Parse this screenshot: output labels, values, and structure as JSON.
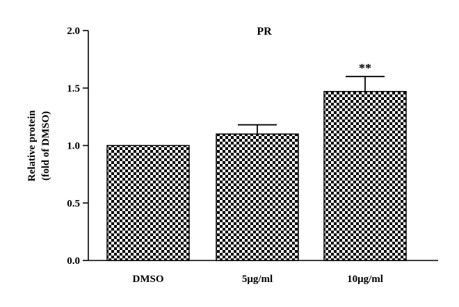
{
  "chart_data": {
    "type": "bar",
    "title": "PR",
    "ylabel_lines": [
      "Relative protein",
      "(fold of DMSO)"
    ],
    "xlabel": "",
    "categories": [
      "DMSO",
      "5μg/ml",
      "10μg/ml"
    ],
    "values": [
      1.0,
      1.1,
      1.47
    ],
    "errors": [
      0.0,
      0.08,
      0.13
    ],
    "annotations": [
      "",
      "",
      "**"
    ],
    "ylim": [
      0,
      2.0
    ],
    "yticks": [
      0.0,
      0.5,
      1.0,
      1.5,
      2.0
    ],
    "ytick_labels": [
      "0.0",
      "0.5",
      "1.0",
      "1.5",
      "2.0"
    ],
    "grid": false,
    "bar_pattern": "checkerboard",
    "colors": {
      "pattern_dark": "#000000",
      "pattern_light": "#ffffff",
      "axis": "#000000"
    }
  }
}
